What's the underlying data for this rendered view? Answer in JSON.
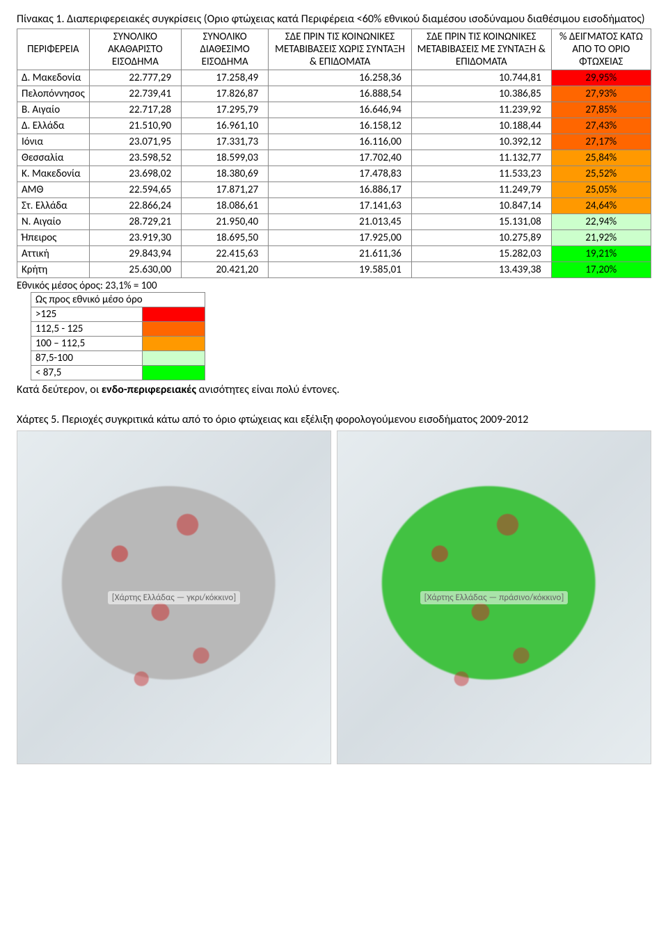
{
  "table": {
    "title_prefix": "Πίνακας 1.",
    "title_rest": " Διαπεριφερειακές συγκρίσεις (Οριο φτώχειας κατά Περιφέρεια <60% εθνικού διαμέσου ισοδύναμου διαθέσιμου εισοδήματος)",
    "columns": [
      "ΠΕΡΙΦΕΡΕΙΑ",
      "ΣΥΝΟΛΙΚΟ ΑΚΑΘΑΡΙΣΤΟ ΕΙΣΟΔΗΜΑ",
      "ΣΥΝΟΛΙΚΟ ΔΙΑΘΕΣΙΜΟ ΕΙΣΟΔΗΜΑ",
      "ΣΔΕ ΠΡΙΝ ΤΙΣ ΚΟΙΝΩΝΙΚΕΣ ΜΕΤΑΒΙΒΑΣΕΙΣ ΧΩΡΙΣ ΣΥΝΤΑΞΗ & ΕΠΙΔΟΜΑΤΑ",
      "ΣΔΕ ΠΡΙΝ ΤΙΣ ΚΟΙΝΩΝΙΚΕΣ ΜΕΤΑΒΙΒΑΣΕΙΣ ΜΕ ΣΥΝΤΑΞΗ & ΕΠΙΔΟΜΑΤΑ",
      "% ΔΕΙΓΜΑΤΟΣ ΚΑΤΩ ΑΠΟ ΤΟ ΟΡΙΟ ΦΤΩΧΕΙΑΣ"
    ],
    "rows": [
      {
        "region": "Δ. Μακεδονία",
        "v": [
          "22.777,29",
          "17.258,49",
          "16.258,36",
          "10.744,81"
        ],
        "pct": "29,95%",
        "color": "#ff0000"
      },
      {
        "region": "Πελοπόννησος",
        "v": [
          "22.739,41",
          "17.826,87",
          "16.888,54",
          "10.386,85"
        ],
        "pct": "27,93%",
        "color": "#ff6600"
      },
      {
        "region": "Β. Αιγαίο",
        "v": [
          "22.717,28",
          "17.295,79",
          "16.646,94",
          "11.239,92"
        ],
        "pct": "27,85%",
        "color": "#ff6600"
      },
      {
        "region": "Δ. Ελλάδα",
        "v": [
          "21.510,90",
          "16.961,10",
          "16.158,12",
          "10.188,44"
        ],
        "pct": "27,43%",
        "color": "#ff6600"
      },
      {
        "region": "Ιόνια",
        "v": [
          "23.071,95",
          "17.331,73",
          "16.116,00",
          "10.392,12"
        ],
        "pct": "27,17%",
        "color": "#ff6600"
      },
      {
        "region": "Θεσσαλία",
        "v": [
          "23.598,52",
          "18.599,03",
          "17.702,40",
          "11.132,77"
        ],
        "pct": "25,84%",
        "color": "#ff9900"
      },
      {
        "region": "Κ. Μακεδονία",
        "v": [
          "23.698,02",
          "18.380,69",
          "17.478,83",
          "11.533,23"
        ],
        "pct": "25,52%",
        "color": "#ff9900"
      },
      {
        "region": "ΑΜΘ",
        "v": [
          "22.594,65",
          "17.871,27",
          "16.886,17",
          "11.249,79"
        ],
        "pct": "25,05%",
        "color": "#ff9900"
      },
      {
        "region": "Στ. Ελλάδα",
        "v": [
          "22.866,24",
          "18.086,61",
          "17.141,63",
          "10.847,14"
        ],
        "pct": "24,64%",
        "color": "#ff9900"
      },
      {
        "region": "Ν. Αιγαίο",
        "v": [
          "28.729,21",
          "21.950,40",
          "21.013,45",
          "15.131,08"
        ],
        "pct": "22,94%",
        "color": "#ccffcc"
      },
      {
        "region": "Ήπειρος",
        "v": [
          "23.919,30",
          "18.695,50",
          "17.925,00",
          "10.275,89"
        ],
        "pct": "21,92%",
        "color": "#ccffcc"
      },
      {
        "region": "Αττική",
        "v": [
          "29.843,94",
          "22.415,63",
          "21.611,36",
          "15.282,03"
        ],
        "pct": "19,21%",
        "color": "#00ff00"
      },
      {
        "region": "Κρήτη",
        "v": [
          "25.630,00",
          "20.421,20",
          "19.585,01",
          "13.439,38"
        ],
        "pct": "17,20%",
        "color": "#00ff00"
      }
    ],
    "footnote": "Εθνικός μέσος όρος: 23,1% = 100",
    "legend": {
      "header": "Ως προς εθνικό μέσο όρο",
      "rows": [
        {
          "label": ">125",
          "color": "#ff0000"
        },
        {
          "label": "112,5 - 125",
          "color": "#ff6600"
        },
        {
          "label": "100 – 112,5",
          "color": "#ff9900"
        },
        {
          "label": "87,5-100",
          "color": "#ccffcc"
        },
        {
          "label": "< 87,5",
          "color": "#00ff00"
        }
      ]
    }
  },
  "paragraph": {
    "pre": "Κατά δεύτερον, οι ",
    "bold": "ενδο-περιφερειακές",
    "post": " ανισότητες είναι πολύ έντονες."
  },
  "maps": {
    "title_prefix": "Χάρτες 5.",
    "title_rest": " Περιοχές συγκριτικά κάτω από το όριο φτώχειας και εξέλιξη φορολογούμενου εισοδήματος 2009-2012",
    "left_placeholder": "[Χάρτης Ελλάδας — γκρι/κόκκινο]",
    "right_placeholder": "[Χάρτης Ελλάδας — πράσινο/κόκκινο]"
  }
}
